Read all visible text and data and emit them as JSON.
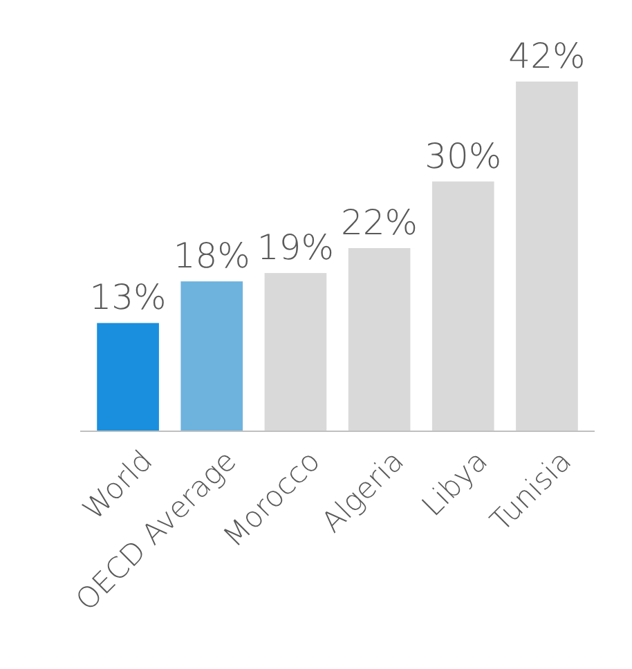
{
  "chart_data": {
    "type": "bar",
    "categories": [
      "World",
      "OECD Average",
      "Morocco",
      "Algeria",
      "Libya",
      "Tunisia"
    ],
    "values": [
      13,
      18,
      19,
      22,
      30,
      42
    ],
    "colors": [
      "#1a8fdd",
      "#6db3de",
      "#d9d9d9",
      "#d9d9d9",
      "#d9d9d9",
      "#d9d9d9"
    ],
    "value_labels": [
      "13%",
      "18%",
      "19%",
      "22%",
      "30%",
      "42%"
    ]
  }
}
